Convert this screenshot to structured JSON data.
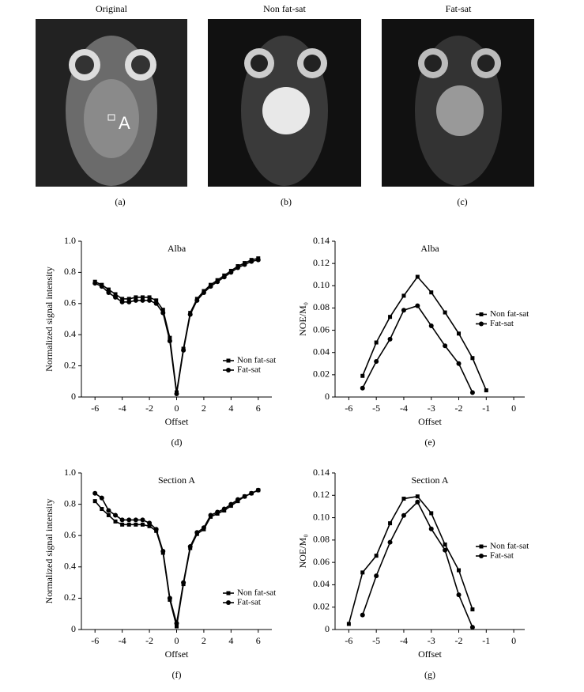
{
  "images": [
    {
      "title": "Original",
      "caption": "(a)",
      "label": "A"
    },
    {
      "title": "Non fat-sat",
      "caption": "(b)"
    },
    {
      "title": "Fat-sat",
      "caption": "(c)"
    }
  ],
  "chart_data": [
    {
      "type": "line",
      "title": "Alba",
      "caption": "(d)",
      "x_label": "Offset",
      "y_label": "Normalized signal intensity",
      "x": [
        -6,
        -5.5,
        -5,
        -4.5,
        -4,
        -3.5,
        -3,
        -2.5,
        -2,
        -1.5,
        -1,
        -0.5,
        0,
        0.5,
        1,
        1.5,
        2,
        2.5,
        3,
        3.5,
        4,
        4.5,
        5,
        5.5,
        6
      ],
      "series": [
        {
          "name": "Non fat-sat",
          "color": "#000000",
          "marker": "square",
          "values": [
            0.74,
            0.72,
            0.69,
            0.66,
            0.63,
            0.63,
            0.64,
            0.64,
            0.64,
            0.62,
            0.56,
            0.38,
            0.03,
            0.31,
            0.54,
            0.63,
            0.68,
            0.72,
            0.75,
            0.78,
            0.81,
            0.84,
            0.86,
            0.88,
            0.89
          ]
        },
        {
          "name": "Fat-sat",
          "color": "#000000",
          "marker": "circle",
          "values": [
            0.73,
            0.71,
            0.67,
            0.64,
            0.61,
            0.61,
            0.62,
            0.62,
            0.62,
            0.6,
            0.54,
            0.36,
            0.02,
            0.3,
            0.53,
            0.62,
            0.67,
            0.71,
            0.74,
            0.77,
            0.8,
            0.83,
            0.85,
            0.87,
            0.88
          ]
        }
      ],
      "xlim": [
        -7,
        7
      ],
      "xticks": [
        -6,
        -4,
        -2,
        0,
        2,
        4,
        6
      ],
      "ylim": [
        0,
        1
      ],
      "yticks": [
        0,
        0.2,
        0.4,
        0.6,
        0.8,
        {
          "value": 1,
          "label": "1.0"
        }
      ],
      "legend": "lower right"
    },
    {
      "type": "line",
      "title": "Alba",
      "caption": "(e)",
      "x_label": "Offset",
      "y_label": "NOE/M₀",
      "x": [
        -5.5,
        -5,
        -4.5,
        -4,
        -3.5,
        -3,
        -2.5,
        -2,
        -1.5,
        -1
      ],
      "series": [
        {
          "name": "Non fat-sat",
          "color": "#000000",
          "marker": "square",
          "values": [
            0.019,
            0.049,
            0.072,
            0.091,
            0.108,
            0.094,
            0.076,
            0.057,
            0.035,
            0.006
          ]
        },
        {
          "name": "Fat-sat",
          "color": "#000000",
          "marker": "circle",
          "values": [
            0.008,
            0.032,
            0.052,
            0.078,
            0.082,
            0.064,
            0.046,
            0.03,
            0.004,
            null
          ]
        }
      ],
      "xlim": [
        -6.5,
        0.4
      ],
      "xticks": [
        -6,
        -5,
        -4,
        -3,
        -2,
        -1,
        0
      ],
      "ylim": [
        0,
        0.14
      ],
      "yticks": [
        0,
        0.02,
        0.04,
        0.06,
        0.08,
        {
          "value": 0.1,
          "label": "0.10"
        },
        0.12,
        0.14
      ],
      "legend": "center right"
    },
    {
      "type": "line",
      "title": "Section A",
      "caption": "(f)",
      "x_label": "Offset",
      "y_label": "Normalized signal intensity",
      "x": [
        -6,
        -5.5,
        -5,
        -4.5,
        -4,
        -3.5,
        -3,
        -2.5,
        -2,
        -1.5,
        -1,
        -0.5,
        0,
        0.5,
        1,
        1.5,
        2,
        2.5,
        3,
        3.5,
        4,
        4.5,
        5,
        5.5,
        6
      ],
      "series": [
        {
          "name": "Non fat-sat",
          "color": "#000000",
          "marker": "square",
          "values": [
            0.82,
            0.77,
            0.73,
            0.69,
            0.67,
            0.67,
            0.67,
            0.67,
            0.66,
            0.63,
            0.49,
            0.19,
            0.02,
            0.29,
            0.52,
            0.61,
            0.64,
            0.72,
            0.74,
            0.76,
            0.79,
            0.82,
            0.85,
            0.87,
            0.89
          ]
        },
        {
          "name": "Fat-sat",
          "color": "#000000",
          "marker": "circle",
          "values": [
            0.87,
            0.84,
            0.76,
            0.73,
            0.7,
            0.7,
            0.7,
            0.7,
            0.68,
            0.64,
            0.5,
            0.2,
            0.04,
            0.3,
            0.53,
            0.62,
            0.65,
            0.73,
            0.75,
            0.77,
            0.8,
            0.83,
            0.85,
            0.87,
            0.89
          ]
        }
      ],
      "xlim": [
        -7,
        7
      ],
      "xticks": [
        -6,
        -4,
        -2,
        0,
        2,
        4,
        6
      ],
      "ylim": [
        0,
        1
      ],
      "yticks": [
        0,
        0.2,
        0.4,
        0.6,
        0.8,
        {
          "value": 1,
          "label": "1.0"
        }
      ],
      "legend": "lower right"
    },
    {
      "type": "line",
      "title": "Section A",
      "caption": "(g)",
      "x_label": "Offset",
      "y_label": "NOE/M₀",
      "x": [
        -6,
        -5.5,
        -5,
        -4.5,
        -4,
        -3.5,
        -3,
        -2.5,
        -2,
        -1.5
      ],
      "series": [
        {
          "name": "Non fat-sat",
          "color": "#000000",
          "marker": "square",
          "values": [
            0.005,
            0.051,
            0.066,
            0.095,
            0.117,
            0.119,
            0.104,
            0.076,
            0.053,
            0.018
          ]
        },
        {
          "name": "Fat-sat",
          "color": "#000000",
          "marker": "circle",
          "values": [
            null,
            0.013,
            0.048,
            0.078,
            0.102,
            0.114,
            0.09,
            0.071,
            0.031,
            0.002
          ]
        }
      ],
      "xlim": [
        -6.5,
        0.4
      ],
      "xticks": [
        -6,
        -5,
        -4,
        -3,
        -2,
        -1,
        0
      ],
      "ylim": [
        0,
        0.14
      ],
      "yticks": [
        0,
        0.02,
        0.04,
        0.06,
        0.08,
        {
          "value": 0.1,
          "label": "0.10"
        },
        0.12,
        0.14
      ],
      "legend": "center right"
    }
  ]
}
